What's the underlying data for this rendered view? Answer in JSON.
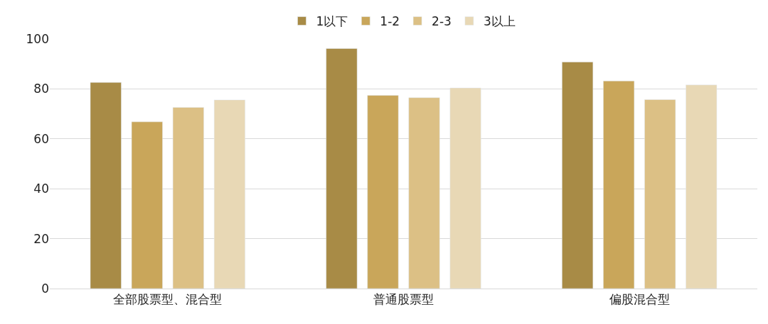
{
  "chart_data": {
    "type": "bar",
    "categories": [
      "全部股票型、混合型",
      "普通股票型",
      "偏股混合型"
    ],
    "series": [
      {
        "name": "1以下",
        "color": "#a88b46",
        "values": [
          82.6,
          96.2,
          90.8
        ]
      },
      {
        "name": "1-2",
        "color": "#c9a65a",
        "values": [
          66.8,
          77.4,
          83.2
        ]
      },
      {
        "name": "2-3",
        "color": "#dcc085",
        "values": [
          72.6,
          76.5,
          75.7
        ]
      },
      {
        "name": "3以上",
        "color": "#e8d8b5",
        "values": [
          75.6,
          80.4,
          81.6
        ]
      }
    ],
    "ylim": [
      0,
      100
    ],
    "yticks": [
      0,
      20,
      40,
      60,
      80,
      100
    ],
    "grid": "y",
    "legend": "top"
  }
}
